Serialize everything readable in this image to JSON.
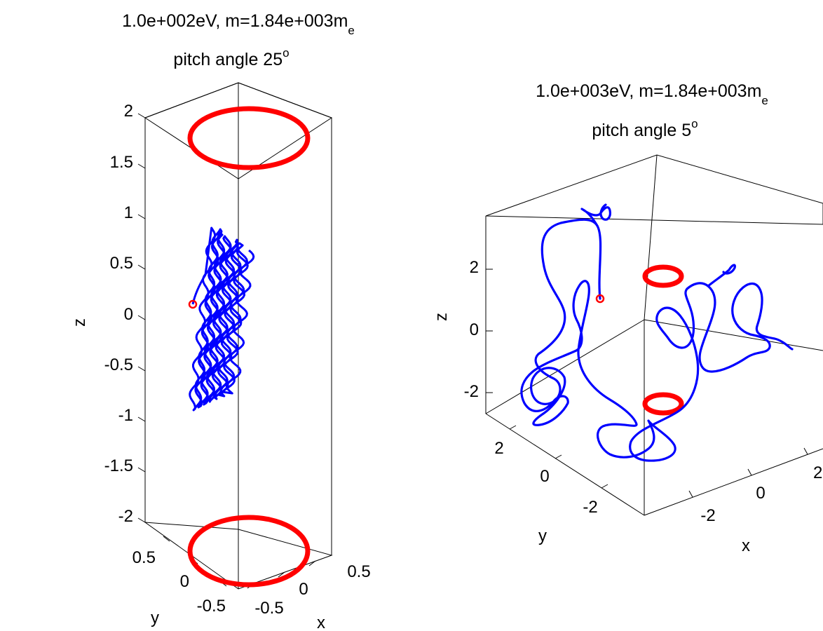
{
  "chart_data": [
    {
      "type": "3d-line",
      "title_line1": {
        "text": "1.0e+002eV, m=1.84e+003m",
        "sub": "e"
      },
      "title_line2": {
        "text": "pitch angle 25",
        "sup": "o"
      },
      "xlabel": "x",
      "ylabel": "y",
      "zlabel": "z",
      "xlim": [
        -0.75,
        0.75
      ],
      "ylim": [
        -0.75,
        0.75
      ],
      "zlim": [
        -2,
        2
      ],
      "x_ticks": [
        "-0.5",
        "0",
        "0.5"
      ],
      "y_ticks": [
        "-0.5",
        "0",
        "0.5"
      ],
      "z_ticks": [
        "-2",
        "-1.5",
        "-1",
        "-0.5",
        "0",
        "0.5",
        "1",
        "1.5",
        "2"
      ],
      "series": [
        {
          "kind": "ring",
          "color": "#ff0000",
          "z": 1.76,
          "radius": 0.6
        },
        {
          "kind": "ring",
          "color": "#ff0000",
          "z": -1.76,
          "radius": 0.6
        },
        {
          "kind": "trajectory",
          "color": "#0000ff",
          "x_range": [
            0.05,
            0.1
          ],
          "y_range": [
            -0.6,
            -0.3
          ],
          "z_range": [
            -0.9,
            0.88
          ],
          "start": {
            "z": 0.15
          }
        },
        {
          "kind": "start-marker",
          "color": "#ff0000",
          "z": 0.15
        }
      ]
    },
    {
      "type": "3d-line",
      "title_line1": {
        "text": "1.0e+003eV, m=1.84e+003m",
        "sub": "e"
      },
      "title_line2": {
        "text": "pitch angle 5",
        "sup": "o"
      },
      "xlabel": "x",
      "ylabel": "y",
      "zlabel": "z",
      "xlim": [
        -4,
        3
      ],
      "ylim": [
        -3.5,
        3.5
      ],
      "zlim": [
        -2.6,
        3.4
      ],
      "x_ticks": [
        "-2",
        "0",
        "2"
      ],
      "y_ticks": [
        "-2",
        "0",
        "2"
      ],
      "z_ticks": [
        "-2",
        "0",
        "2"
      ],
      "series": [
        {
          "kind": "ring",
          "color": "#ff0000",
          "z": 1.76,
          "radius": 0.6
        },
        {
          "kind": "ring",
          "color": "#ff0000",
          "z": -1.76,
          "radius": 0.6
        },
        {
          "kind": "trajectory",
          "color": "#0000ff",
          "x_range": [
            -3.5,
            3
          ],
          "y_range": [
            -3,
            3
          ],
          "z_range": [
            -2.5,
            3.3
          ]
        },
        {
          "kind": "start-marker",
          "color": "#ff0000",
          "z": 1.0
        }
      ]
    }
  ]
}
